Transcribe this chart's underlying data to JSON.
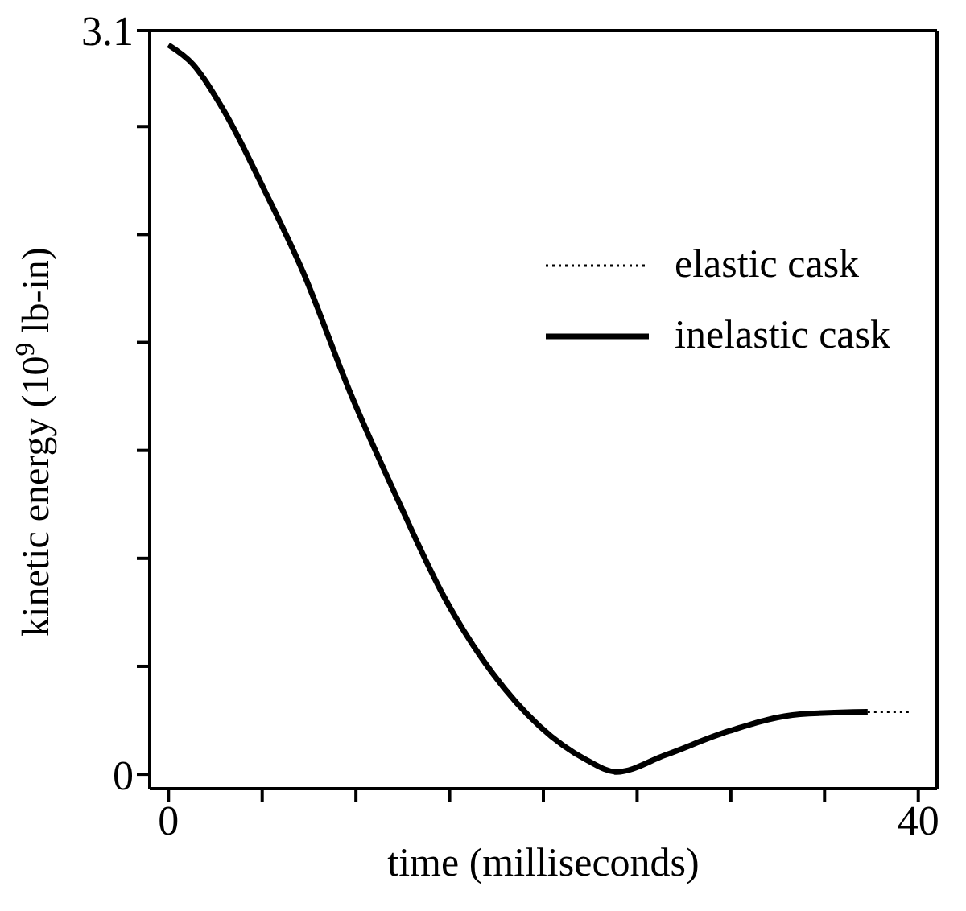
{
  "chart_data": {
    "type": "line",
    "xlabel": "time (milliseconds)",
    "ylabel": "kinetic energy (10$^{9}$ lb-in)",
    "xlim": [
      -1,
      41
    ],
    "ylim": [
      -0.06,
      3.1
    ],
    "xticks": [
      0,
      {
        "value": 5,
        "label": null
      },
      {
        "value": 10,
        "label": null
      },
      {
        "value": 15,
        "label": null
      },
      {
        "value": 20,
        "label": null
      },
      {
        "value": 25,
        "label": null
      },
      {
        "value": 30,
        "label": null
      },
      {
        "value": 35,
        "label": null
      },
      40
    ],
    "yticks": [
      0,
      {
        "value": 0.45,
        "label": null
      },
      {
        "value": 0.9,
        "label": null
      },
      {
        "value": 1.35,
        "label": null
      },
      {
        "value": 1.8,
        "label": null
      },
      {
        "value": 2.25,
        "label": null
      },
      {
        "value": 2.7,
        "label": null
      },
      3.1
    ],
    "legend": "top right",
    "marker": "none",
    "series": [
      {
        "name": "elastic cask",
        "color": "#000000",
        "line_style": "dotted",
        "x": [
          37.3,
          39.7
        ],
        "values": [
          0.26,
          0.26
        ]
      },
      {
        "name": "inelastic cask",
        "color": "#000000",
        "line_style": "solid",
        "x": [
          0,
          1.3,
          3,
          4.9,
          7.2,
          9.7,
          12.2,
          14.7,
          17.3,
          19.8,
          22.3,
          23.9,
          26.5,
          29.9,
          33.7,
          37.3
        ],
        "values": [
          3.04,
          2.96,
          2.76,
          2.47,
          2.09,
          1.59,
          1.15,
          0.74,
          0.42,
          0.2,
          0.06,
          0.01,
          0.08,
          0.18,
          0.25,
          0.26
        ]
      }
    ]
  }
}
